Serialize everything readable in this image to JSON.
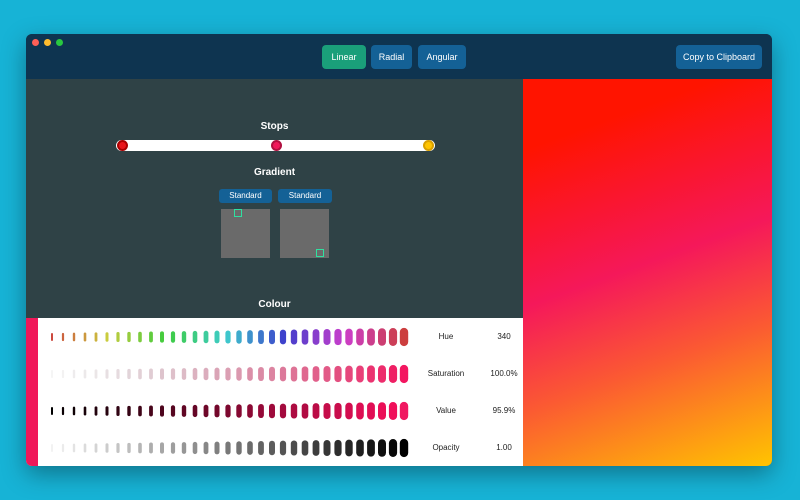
{
  "toolbar": {
    "buttons": [
      "Linear",
      "Radial",
      "Angular"
    ],
    "copy_button": "Copy to Clipboard"
  },
  "stops": {
    "title": "Stops"
  },
  "gradient": {
    "title": "Gradient",
    "buttons": [
      "Standard",
      "Standard"
    ]
  },
  "colour": {
    "title": "Colour",
    "rows": [
      {
        "label": "Hue",
        "value": "340"
      },
      {
        "label": "Saturation",
        "value": "100.0%"
      },
      {
        "label": "Value",
        "value": "95.9%"
      },
      {
        "label": "Opacity",
        "value": "1.00"
      }
    ]
  }
}
